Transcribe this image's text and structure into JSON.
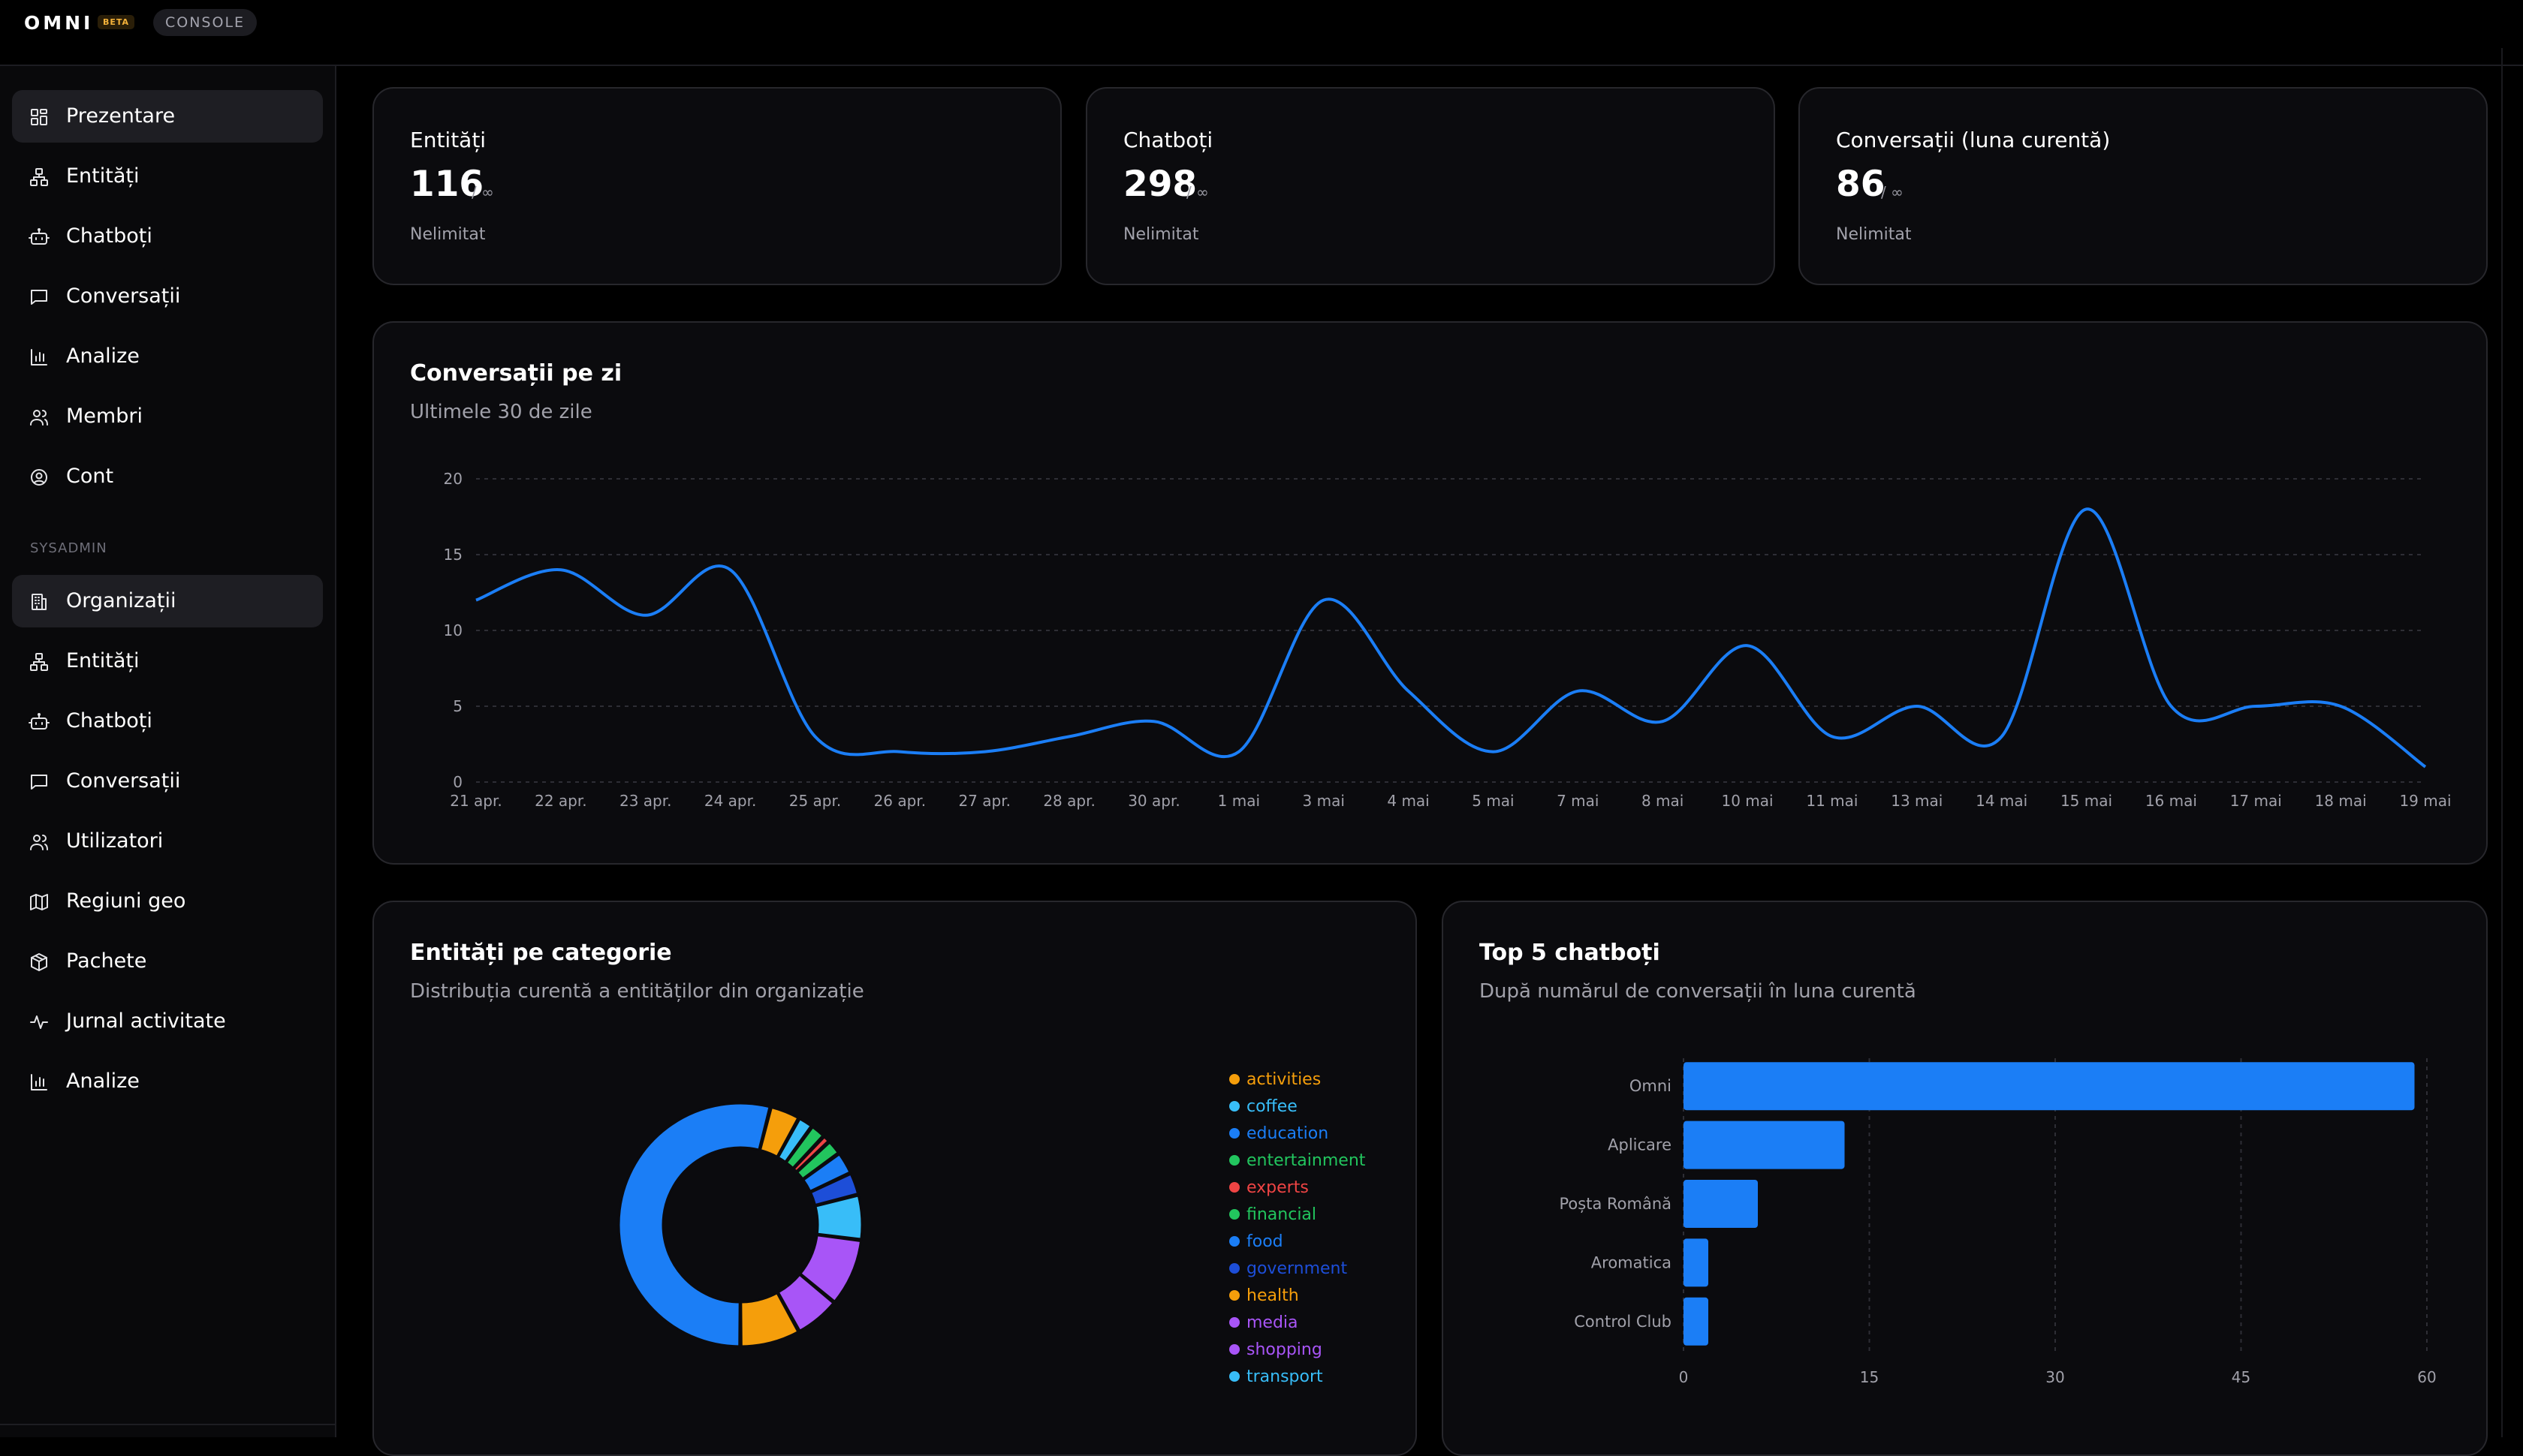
{
  "header": {
    "logo": "OMNI",
    "badge": "BETA",
    "console_label": "CONSOLE"
  },
  "sidebar": {
    "items": [
      {
        "label": "Prezentare",
        "icon": "dashboard-grid-icon",
        "active": true
      },
      {
        "label": "Entități",
        "icon": "entities-network-icon"
      },
      {
        "label": "Chatboți",
        "icon": "bot-icon"
      },
      {
        "label": "Conversații",
        "icon": "message-square-icon"
      },
      {
        "label": "Analize",
        "icon": "bar-chart-icon"
      },
      {
        "label": "Membri",
        "icon": "users-icon"
      },
      {
        "label": "Cont",
        "icon": "user-circle-icon"
      }
    ],
    "section_label": "SYSADMIN",
    "sysadmin_items": [
      {
        "label": "Organizații",
        "icon": "building-icon",
        "active": true
      },
      {
        "label": "Entități",
        "icon": "entities-network-icon"
      },
      {
        "label": "Chatboți",
        "icon": "bot-icon"
      },
      {
        "label": "Conversații",
        "icon": "message-square-icon"
      },
      {
        "label": "Utilizatori",
        "icon": "users-icon"
      },
      {
        "label": "Regiuni geo",
        "icon": "map-icon"
      },
      {
        "label": "Pachete",
        "icon": "package-icon"
      },
      {
        "label": "Jurnal activitate",
        "icon": "activity-icon"
      },
      {
        "label": "Analize",
        "icon": "bar-chart-icon"
      }
    ]
  },
  "stats": [
    {
      "title": "Entități",
      "value": "116",
      "max": "/ ∞",
      "sub": "Nelimitat"
    },
    {
      "title": "Chatboți",
      "value": "298",
      "max": "/ ∞",
      "sub": "Nelimitat"
    },
    {
      "title": "Conversații (luna curentă)",
      "value": "86",
      "max": "/ ∞",
      "sub": "Nelimitat"
    }
  ],
  "conversations_chart": {
    "title": "Conversații pe zi",
    "subtitle": "Ultimele 30 de zile"
  },
  "categories_chart": {
    "title": "Entități pe categorie",
    "subtitle": "Distribuția curentă a entităților din organizație"
  },
  "top_chart": {
    "title": "Top 5 chatboți",
    "subtitle": "După numărul de conversații în luna curentă"
  },
  "colors": {
    "accent": "#1b7ef6",
    "background": "#000000",
    "card": "#0b0b0e"
  },
  "chart_data": [
    {
      "type": "line",
      "title": "Conversații pe zi",
      "subtitle": "Ultimele 30 de zile",
      "categories": [
        "21 apr.",
        "22 apr.",
        "23 apr.",
        "24 apr.",
        "25 apr.",
        "26 apr.",
        "27 apr.",
        "28 apr.",
        "30 apr.",
        "1 mai",
        "3 mai",
        "4 mai",
        "5 mai",
        "7 mai",
        "8 mai",
        "10 mai",
        "11 mai",
        "13 mai",
        "14 mai",
        "15 mai",
        "16 mai",
        "17 mai",
        "18 mai",
        "19 mai"
      ],
      "values": [
        12,
        14,
        11,
        14,
        3,
        2,
        2,
        3,
        4,
        2,
        12,
        6,
        2,
        6,
        4,
        9,
        3,
        5,
        3,
        18,
        5,
        5,
        5,
        1
      ],
      "yticks": [
        "0",
        "5",
        "10",
        "15",
        "20"
      ],
      "ylim": [
        0,
        20
      ],
      "grid": true,
      "color": "#1b7ef6"
    },
    {
      "type": "pie",
      "title": "Entități pe categorie",
      "subtitle": "Distribuția curentă a entităților din organizație",
      "legend_position": "right",
      "labels": [
        "activities",
        "coffee",
        "education",
        "entertainment",
        "experts",
        "financial",
        "food",
        "government",
        "health",
        "media",
        "shopping",
        "transport"
      ],
      "values": [
        4,
        2,
        54,
        2,
        1,
        2,
        3,
        3,
        8,
        6,
        9,
        6
      ],
      "colors": [
        "#f59e0b",
        "#38bdf8",
        "#1b7ef6",
        "#22c55e",
        "#ef4444",
        "#22c55e",
        "#1b7ef6",
        "#1d4ed8",
        "#f59e0b",
        "#a855f7",
        "#a855f7",
        "#38bdf8"
      ]
    },
    {
      "type": "bar",
      "orientation": "horizontal",
      "title": "Top 5 chatboți",
      "subtitle": "După numărul de conversații în luna curentă",
      "categories": [
        "Omni",
        "Aplicare",
        "Poșta Română",
        "Aromatica",
        "Control Club"
      ],
      "values": [
        59,
        13,
        6,
        2,
        2
      ],
      "xticks": [
        "0",
        "15",
        "30",
        "45",
        "60"
      ],
      "xlim": [
        0,
        60
      ],
      "color": "#1b7ef6"
    }
  ]
}
